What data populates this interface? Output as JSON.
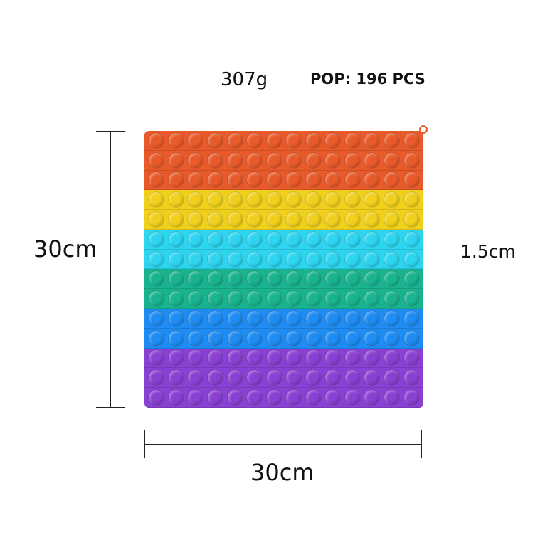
{
  "weight": "307g",
  "pop_count": "POP: 196 PCS",
  "height_label": "30cm",
  "width_label": "30cm",
  "thickness_label": "1.5cm",
  "board": {
    "columns": 14,
    "bands": [
      {
        "color": "#e85a2a",
        "rows": 3
      },
      {
        "color": "#f0d01c",
        "rows": 2
      },
      {
        "color": "#2dd5f0",
        "rows": 2
      },
      {
        "color": "#19b48f",
        "rows": 2
      },
      {
        "color": "#1e8cf2",
        "rows": 2
      },
      {
        "color": "#8a40d2",
        "rows": 3
      }
    ]
  }
}
